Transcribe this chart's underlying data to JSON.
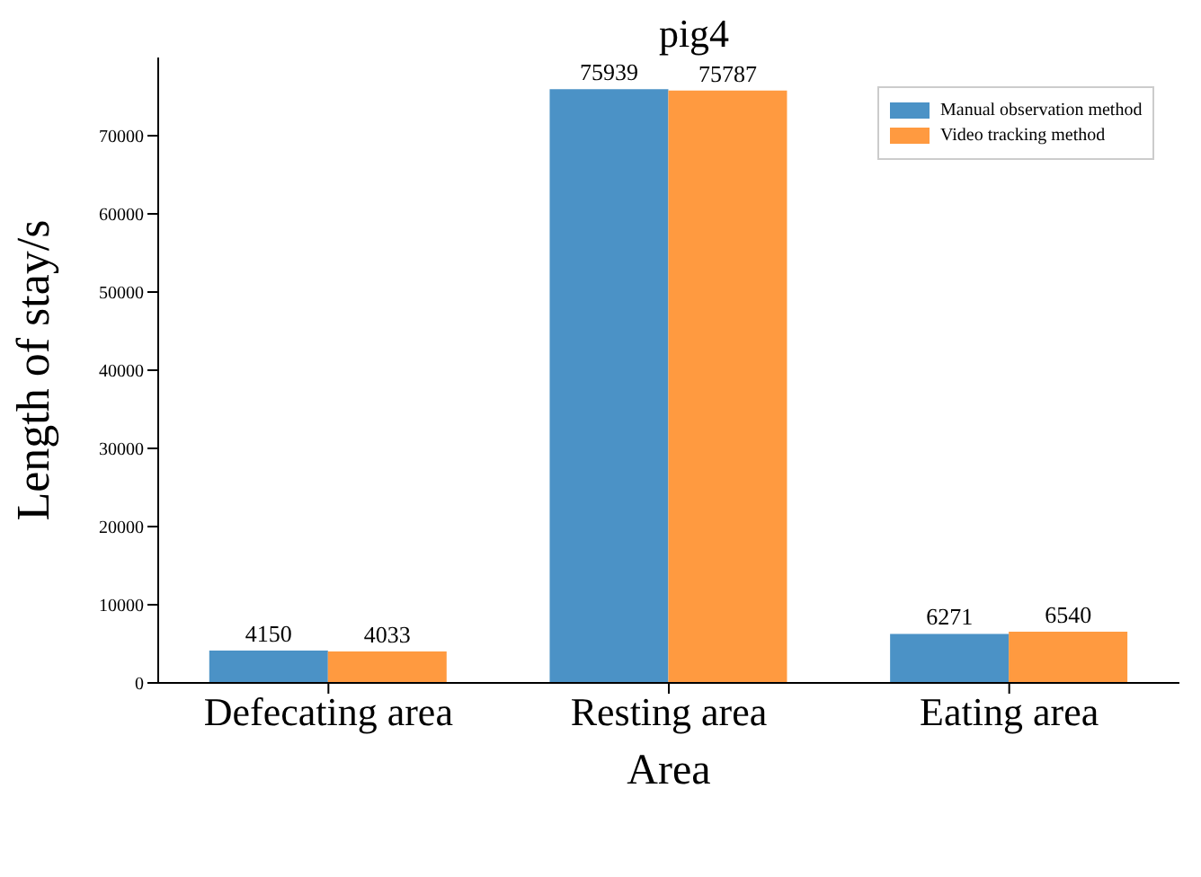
{
  "chart_data": {
    "type": "bar",
    "title": "pig4",
    "xlabel": "Area",
    "ylabel": "Length of stay/s",
    "categories": [
      "Defecating area",
      "Resting area",
      "Eating area"
    ],
    "series": [
      {
        "name": "Manual observation method",
        "color": "#4b92c6",
        "values": [
          4150,
          75939,
          6271
        ]
      },
      {
        "name": "Video tracking method",
        "color": "#ff9a40",
        "values": [
          4033,
          75787,
          6540
        ]
      }
    ],
    "ylim": [
      0,
      80000
    ],
    "yticks": [
      0,
      10000,
      20000,
      30000,
      40000,
      50000,
      60000,
      70000
    ],
    "data_labels": true,
    "legend": "top right",
    "grid": false
  }
}
